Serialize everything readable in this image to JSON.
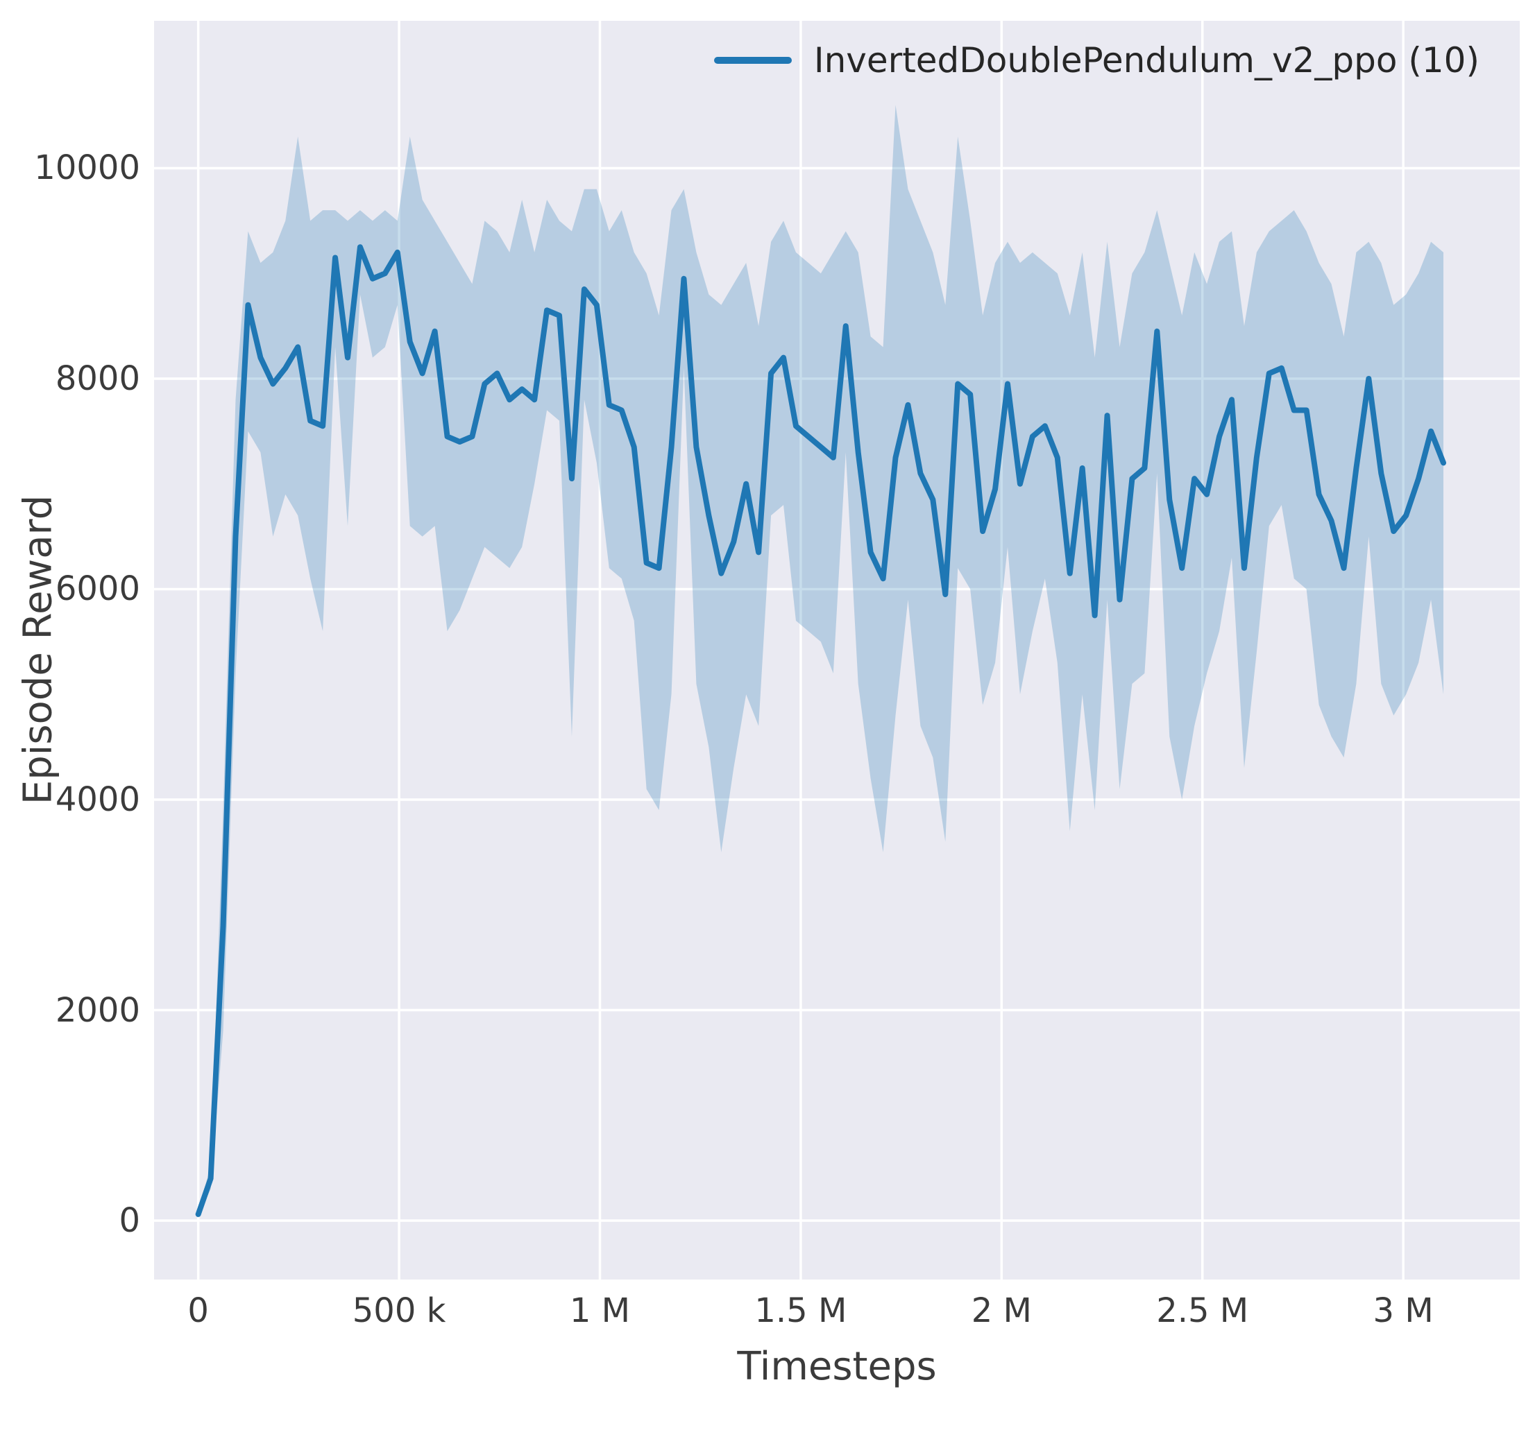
{
  "figure": {
    "background": "#ffffff",
    "plot_background": "#eaeaf2",
    "grid_color": "#ffffff",
    "text_color": "#3b3b3b"
  },
  "chart_data": {
    "type": "line",
    "title": "",
    "xlabel": "Timesteps",
    "ylabel": "Episode Reward",
    "grid": true,
    "legend_position": "upper right",
    "xlim": [
      -110000,
      3290000
    ],
    "ylim": [
      -560,
      11400
    ],
    "x_ticks": [
      {
        "value": 0,
        "label": "0"
      },
      {
        "value": 500000,
        "label": "500 k"
      },
      {
        "value": 1000000,
        "label": "1 M"
      },
      {
        "value": 1500000,
        "label": "1.5 M"
      },
      {
        "value": 2000000,
        "label": "2 M"
      },
      {
        "value": 2500000,
        "label": "2.5 M"
      },
      {
        "value": 3000000,
        "label": "3 M"
      }
    ],
    "y_ticks": [
      {
        "value": 0,
        "label": "0"
      },
      {
        "value": 2000,
        "label": "2000"
      },
      {
        "value": 4000,
        "label": "4000"
      },
      {
        "value": 6000,
        "label": "6000"
      },
      {
        "value": 8000,
        "label": "8000"
      },
      {
        "value": 10000,
        "label": "10000"
      }
    ],
    "series": [
      {
        "name": "InvertedDoublePendulum_v2_ppo (10)",
        "color": "#1f77b4",
        "band_color": "#1f77b4",
        "band_opacity": 0.25,
        "x": [
          0,
          31000,
          62000,
          93000,
          124000,
          155000,
          186000,
          217000,
          248000,
          279000,
          310000,
          341000,
          372000,
          403000,
          434000,
          465000,
          496000,
          527000,
          558000,
          589000,
          620000,
          651000,
          682000,
          713000,
          744000,
          775000,
          806000,
          837000,
          868000,
          899000,
          930000,
          961000,
          992000,
          1023000,
          1054000,
          1085000,
          1116000,
          1147000,
          1178000,
          1209000,
          1240000,
          1271000,
          1302000,
          1333000,
          1364000,
          1395000,
          1426000,
          1457000,
          1488000,
          1519000,
          1550000,
          1581000,
          1612000,
          1643000,
          1674000,
          1705000,
          1736000,
          1767000,
          1798000,
          1829000,
          1860000,
          1891000,
          1922000,
          1953000,
          1984000,
          2015000,
          2046000,
          2077000,
          2108000,
          2139000,
          2170000,
          2201000,
          2232000,
          2263000,
          2294000,
          2325000,
          2356000,
          2387000,
          2418000,
          2449000,
          2480000,
          2511000,
          2542000,
          2573000,
          2604000,
          2635000,
          2666000,
          2697000,
          2728000,
          2759000,
          2790000,
          2821000,
          2852000,
          2883000,
          2914000,
          2945000,
          2976000,
          3007000,
          3038000,
          3069000,
          3100000
        ],
        "mean": [
          60,
          400,
          2800,
          6500,
          8700,
          8200,
          7950,
          8100,
          8300,
          7600,
          7550,
          9150,
          8200,
          9250,
          8950,
          9000,
          9200,
          8350,
          8050,
          8450,
          7450,
          7400,
          7450,
          7950,
          8050,
          7800,
          7900,
          7800,
          8650,
          8600,
          7050,
          8850,
          8700,
          7750,
          7700,
          7350,
          6250,
          6200,
          7350,
          8950,
          7350,
          6700,
          6150,
          6450,
          7000,
          6350,
          8050,
          8200,
          7550,
          7450,
          7350,
          7250,
          8500,
          7300,
          6350,
          6100,
          7250,
          7750,
          7100,
          6850,
          5950,
          7950,
          7850,
          6550,
          6950,
          7950,
          7000,
          7450,
          7550,
          7250,
          6150,
          7150,
          5750,
          7650,
          5900,
          7050,
          7150,
          8450,
          6850,
          6200,
          7050,
          6900,
          7450,
          7800,
          6200,
          7250,
          8050,
          8100,
          7700,
          7700,
          6900,
          6650,
          6200,
          7150,
          8000,
          7100,
          6550,
          6700,
          7050,
          7500,
          7200
        ],
        "lower": [
          40,
          300,
          1800,
          5200,
          7500,
          7300,
          6500,
          6900,
          6700,
          6100,
          5600,
          8300,
          6600,
          8800,
          8200,
          8300,
          8700,
          6600,
          6500,
          6600,
          5600,
          5800,
          6100,
          6400,
          6300,
          6200,
          6400,
          7000,
          7700,
          7600,
          4600,
          7800,
          7200,
          6200,
          6100,
          5700,
          4100,
          3900,
          5000,
          8100,
          5100,
          4500,
          3500,
          4300,
          5000,
          4700,
          6700,
          6800,
          5700,
          5600,
          5500,
          5200,
          7300,
          5100,
          4200,
          3500,
          4800,
          5900,
          4700,
          4400,
          3600,
          6200,
          6000,
          4900,
          5300,
          6400,
          5000,
          5600,
          6100,
          5300,
          3700,
          5000,
          3900,
          5900,
          4100,
          5100,
          5200,
          7100,
          4600,
          4000,
          4700,
          5200,
          5600,
          6300,
          4300,
          5400,
          6600,
          6800,
          6100,
          6000,
          4900,
          4600,
          4400,
          5100,
          6500,
          5100,
          4800,
          5000,
          5300,
          5900,
          5000
        ],
        "upper": [
          90,
          520,
          3900,
          7800,
          9400,
          9100,
          9200,
          9500,
          10300,
          9500,
          9600,
          9600,
          9500,
          9600,
          9500,
          9600,
          9500,
          10300,
          9700,
          9500,
          9300,
          9100,
          8900,
          9500,
          9400,
          9200,
          9700,
          9200,
          9700,
          9500,
          9400,
          9800,
          9800,
          9400,
          9600,
          9200,
          9000,
          8600,
          9600,
          9800,
          9200,
          8800,
          8700,
          8900,
          9100,
          8500,
          9300,
          9500,
          9200,
          9100,
          9000,
          9200,
          9400,
          9200,
          8400,
          8300,
          10600,
          9800,
          9500,
          9200,
          8700,
          10300,
          9500,
          8600,
          9100,
          9300,
          9100,
          9200,
          9100,
          9000,
          8600,
          9200,
          8200,
          9300,
          8300,
          9000,
          9200,
          9600,
          9100,
          8600,
          9200,
          8900,
          9300,
          9400,
          8500,
          9200,
          9400,
          9500,
          9600,
          9400,
          9100,
          8900,
          8400,
          9200,
          9300,
          9100,
          8700,
          8800,
          9000,
          9300,
          9200
        ]
      }
    ]
  }
}
